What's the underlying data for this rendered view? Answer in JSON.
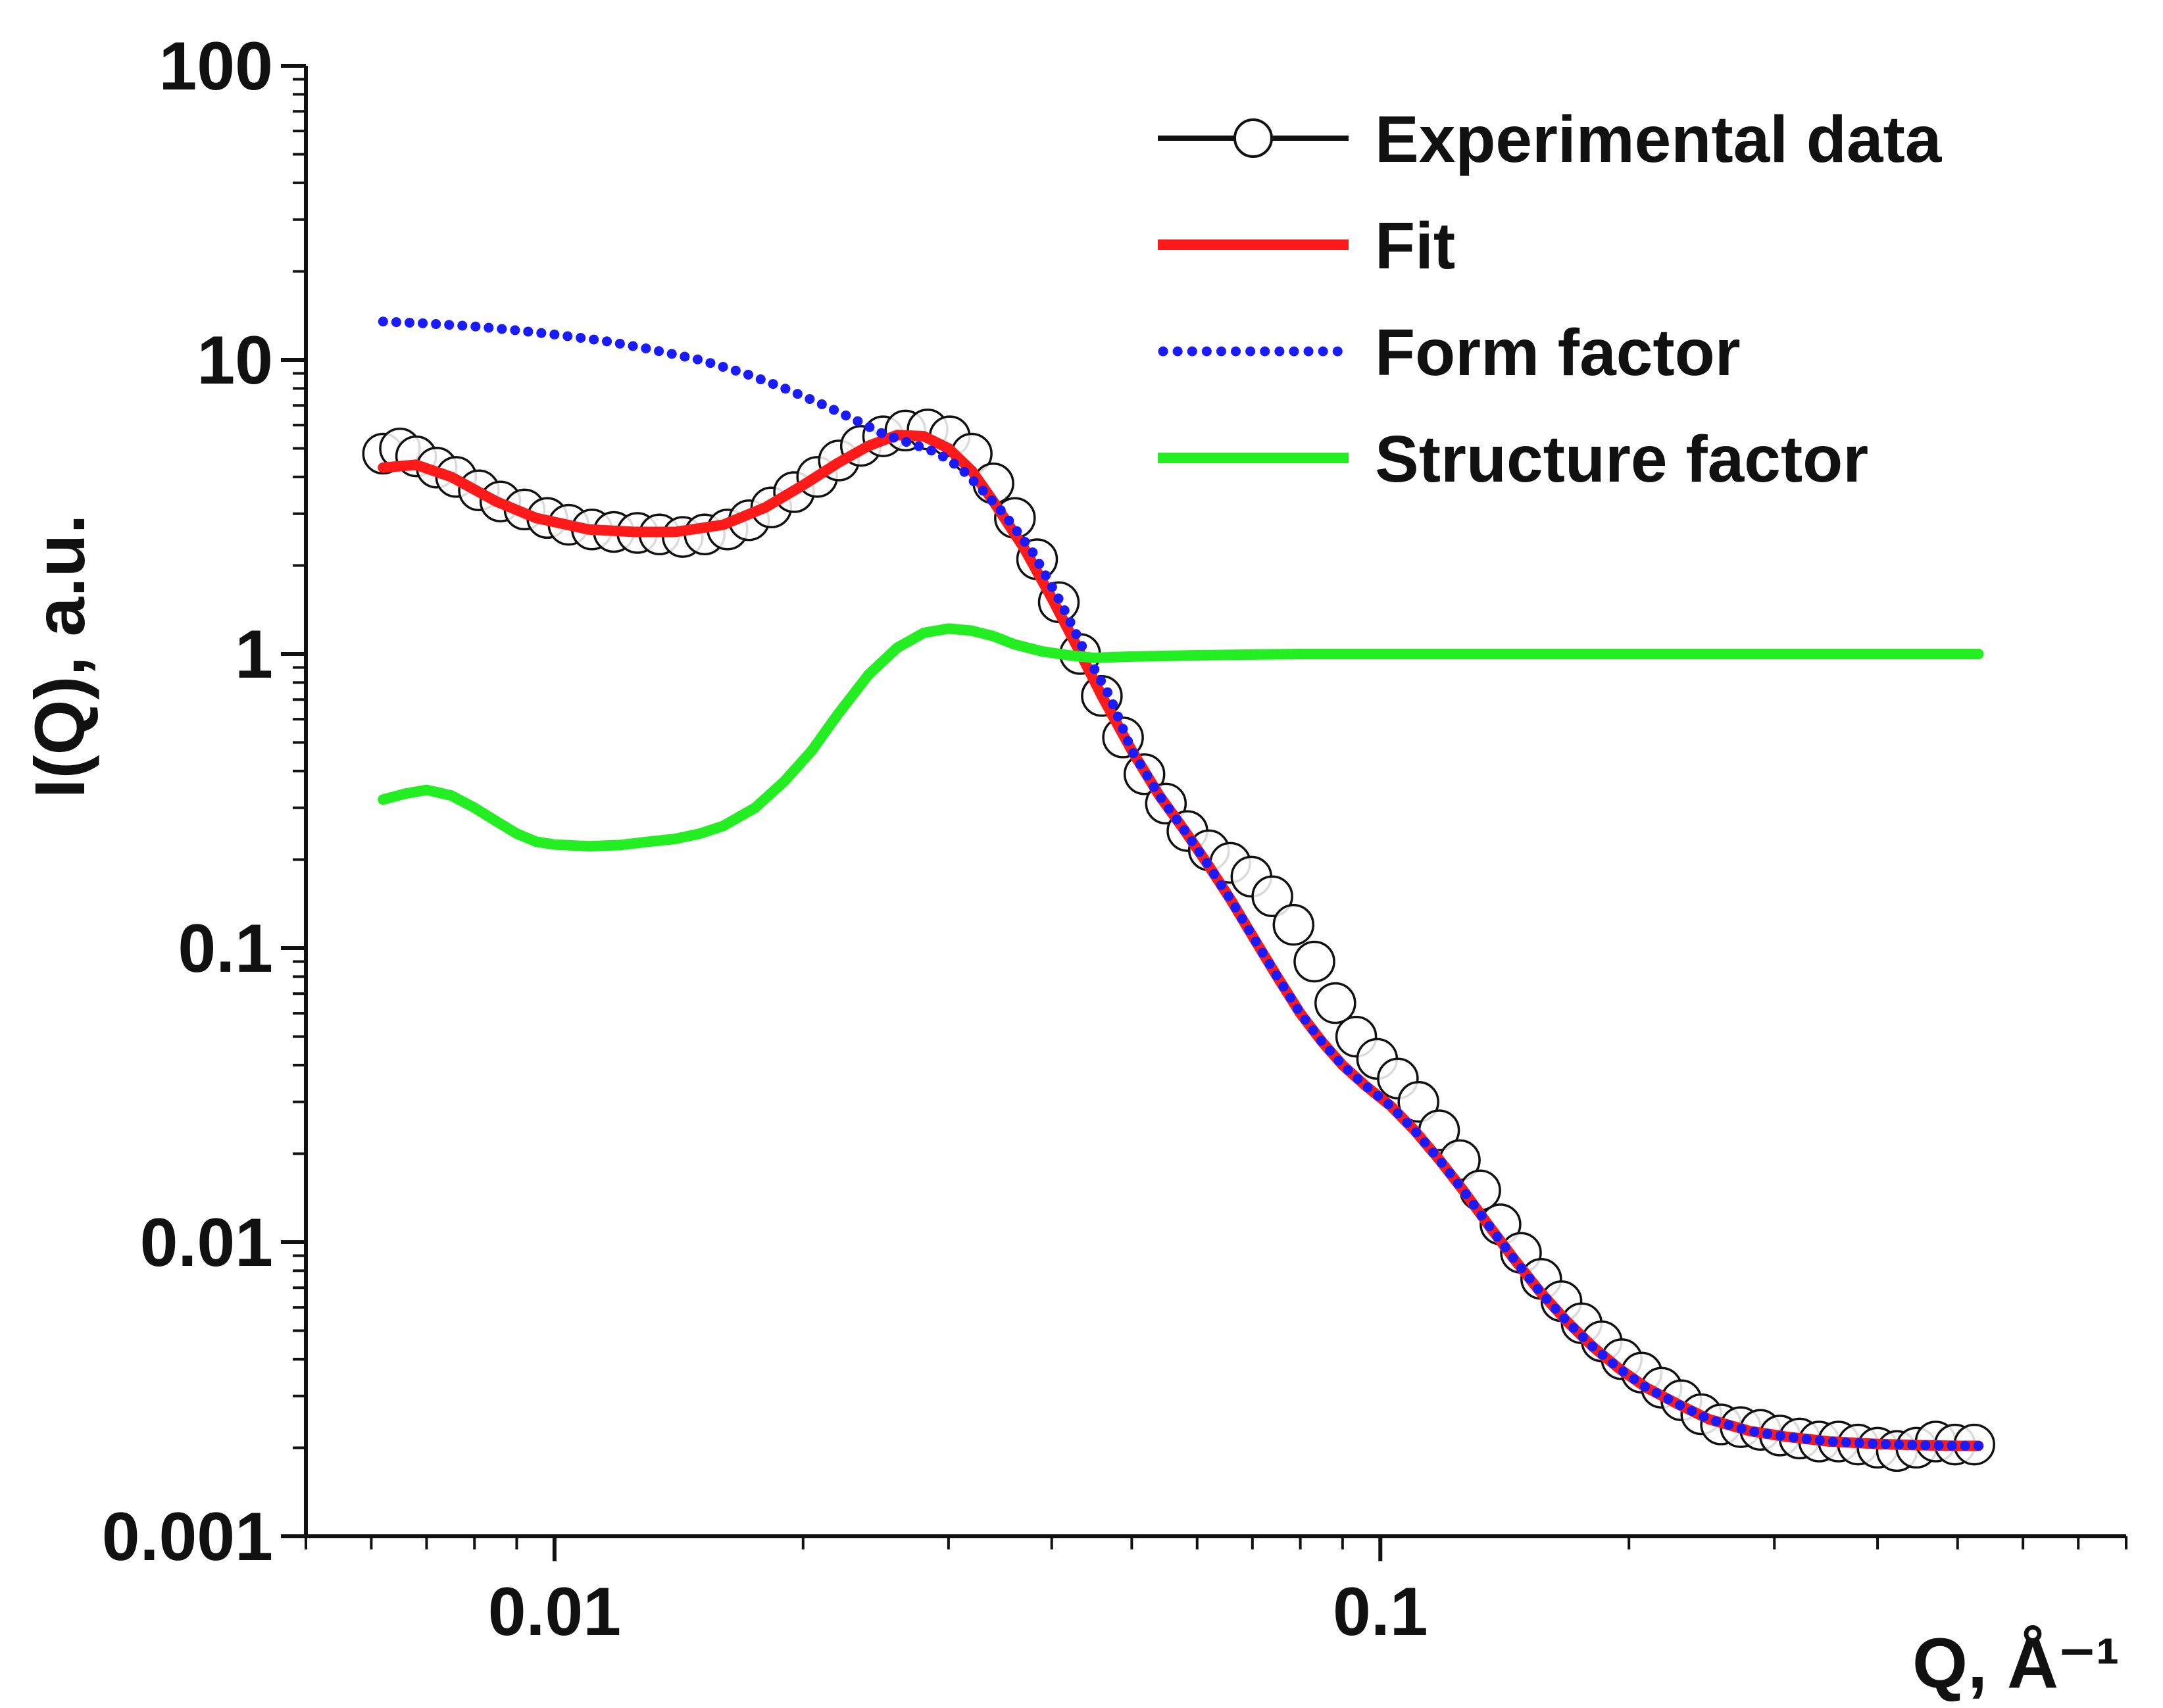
{
  "chart_data": {
    "type": "line",
    "xscale": "log",
    "yscale": "log",
    "xlim": [
      0.005,
      0.8
    ],
    "ylim": [
      0.001,
      100
    ],
    "xlabel": "Q, Å⁻¹",
    "ylabel": "I(Q), a.u.",
    "x_ticks": [
      {
        "value": 0.01,
        "label": "0.01"
      },
      {
        "value": 0.1,
        "label": "0.1"
      }
    ],
    "y_ticks": [
      {
        "value": 0.001,
        "label": "0.001"
      },
      {
        "value": 0.01,
        "label": "0.01"
      },
      {
        "value": 0.1,
        "label": "0.1"
      },
      {
        "value": 1,
        "label": "1"
      },
      {
        "value": 10,
        "label": "10"
      },
      {
        "value": 100,
        "label": "100"
      }
    ],
    "legend_position": "top-right",
    "series": [
      {
        "name": "Experimental data",
        "style": "circles-line",
        "color": "#111111",
        "points": [
          [
            0.0062,
            4.8
          ],
          [
            0.0065,
            5.0
          ],
          [
            0.0068,
            4.7
          ],
          [
            0.0072,
            4.3
          ],
          [
            0.0076,
            4.0
          ],
          [
            0.0081,
            3.6
          ],
          [
            0.0086,
            3.3
          ],
          [
            0.0092,
            3.1
          ],
          [
            0.0098,
            2.9
          ],
          [
            0.0104,
            2.75
          ],
          [
            0.0111,
            2.65
          ],
          [
            0.0118,
            2.6
          ],
          [
            0.0126,
            2.58
          ],
          [
            0.0134,
            2.55
          ],
          [
            0.0143,
            2.5
          ],
          [
            0.0152,
            2.55
          ],
          [
            0.0162,
            2.65
          ],
          [
            0.0172,
            2.85
          ],
          [
            0.0183,
            3.15
          ],
          [
            0.0195,
            3.55
          ],
          [
            0.0208,
            4.0
          ],
          [
            0.0221,
            4.55
          ],
          [
            0.0235,
            5.1
          ],
          [
            0.025,
            5.5
          ],
          [
            0.0266,
            5.75
          ],
          [
            0.0283,
            5.8
          ],
          [
            0.0301,
            5.5
          ],
          [
            0.032,
            4.8
          ],
          [
            0.034,
            3.8
          ],
          [
            0.0361,
            2.9
          ],
          [
            0.0384,
            2.1
          ],
          [
            0.0408,
            1.5
          ],
          [
            0.0433,
            1.0
          ],
          [
            0.046,
            0.72
          ],
          [
            0.0488,
            0.52
          ],
          [
            0.0518,
            0.39
          ],
          [
            0.055,
            0.31
          ],
          [
            0.0584,
            0.25
          ],
          [
            0.062,
            0.215
          ],
          [
            0.0658,
            0.195
          ],
          [
            0.0698,
            0.175
          ],
          [
            0.074,
            0.15
          ],
          [
            0.0785,
            0.12
          ],
          [
            0.0832,
            0.09
          ],
          [
            0.0882,
            0.065
          ],
          [
            0.0935,
            0.05
          ],
          [
            0.0991,
            0.042
          ],
          [
            0.105,
            0.036
          ],
          [
            0.1112,
            0.03
          ],
          [
            0.1178,
            0.024
          ],
          [
            0.1248,
            0.019
          ],
          [
            0.1321,
            0.015
          ],
          [
            0.1398,
            0.0115
          ],
          [
            0.148,
            0.0092
          ],
          [
            0.1566,
            0.0075
          ],
          [
            0.1657,
            0.0063
          ],
          [
            0.1753,
            0.0053
          ],
          [
            0.1854,
            0.0046
          ],
          [
            0.196,
            0.004
          ],
          [
            0.2072,
            0.0036
          ],
          [
            0.219,
            0.0032
          ],
          [
            0.2315,
            0.0029
          ],
          [
            0.2447,
            0.0026
          ],
          [
            0.2585,
            0.0024
          ],
          [
            0.2731,
            0.00235
          ],
          [
            0.2885,
            0.0023
          ],
          [
            0.3047,
            0.0022
          ],
          [
            0.3218,
            0.00215
          ],
          [
            0.3398,
            0.0021
          ],
          [
            0.3588,
            0.0021
          ],
          [
            0.3788,
            0.00205
          ],
          [
            0.4,
            0.002
          ],
          [
            0.4222,
            0.00195
          ],
          [
            0.4457,
            0.002
          ],
          [
            0.4704,
            0.0021
          ],
          [
            0.4964,
            0.00205
          ],
          [
            0.5239,
            0.00205
          ]
        ]
      },
      {
        "name": "Fit",
        "style": "solid",
        "color": "#ff1a1a",
        "points": [
          [
            0.0062,
            4.3
          ],
          [
            0.0068,
            4.4
          ],
          [
            0.0075,
            4.0
          ],
          [
            0.0085,
            3.3
          ],
          [
            0.0095,
            2.9
          ],
          [
            0.011,
            2.65
          ],
          [
            0.0125,
            2.6
          ],
          [
            0.014,
            2.6
          ],
          [
            0.016,
            2.75
          ],
          [
            0.018,
            3.15
          ],
          [
            0.02,
            3.75
          ],
          [
            0.022,
            4.45
          ],
          [
            0.024,
            5.1
          ],
          [
            0.026,
            5.55
          ],
          [
            0.028,
            5.5
          ],
          [
            0.03,
            5.0
          ],
          [
            0.032,
            4.2
          ],
          [
            0.034,
            3.3
          ],
          [
            0.037,
            2.3
          ],
          [
            0.04,
            1.55
          ],
          [
            0.043,
            1.05
          ],
          [
            0.046,
            0.72
          ],
          [
            0.05,
            0.47
          ],
          [
            0.054,
            0.33
          ],
          [
            0.058,
            0.25
          ],
          [
            0.062,
            0.19
          ],
          [
            0.066,
            0.145
          ],
          [
            0.07,
            0.11
          ],
          [
            0.075,
            0.08
          ],
          [
            0.08,
            0.06
          ],
          [
            0.085,
            0.048
          ],
          [
            0.09,
            0.04
          ],
          [
            0.096,
            0.034
          ],
          [
            0.103,
            0.029
          ],
          [
            0.11,
            0.024
          ],
          [
            0.118,
            0.019
          ],
          [
            0.126,
            0.015
          ],
          [
            0.135,
            0.0115
          ],
          [
            0.145,
            0.0088
          ],
          [
            0.156,
            0.0068
          ],
          [
            0.168,
            0.0054
          ],
          [
            0.181,
            0.0044
          ],
          [
            0.195,
            0.0037
          ],
          [
            0.21,
            0.0032
          ],
          [
            0.23,
            0.0028
          ],
          [
            0.25,
            0.0025
          ],
          [
            0.28,
            0.00228
          ],
          [
            0.31,
            0.00218
          ],
          [
            0.35,
            0.0021
          ],
          [
            0.4,
            0.00206
          ],
          [
            0.45,
            0.00204
          ],
          [
            0.5,
            0.00203
          ],
          [
            0.53,
            0.00203
          ]
        ]
      },
      {
        "name": "Form factor",
        "style": "dotted",
        "color": "#1a1aff",
        "points": [
          [
            0.0062,
            13.5
          ],
          [
            0.007,
            13.3
          ],
          [
            0.008,
            13.0
          ],
          [
            0.009,
            12.6
          ],
          [
            0.01,
            12.2
          ],
          [
            0.0115,
            11.6
          ],
          [
            0.013,
            10.9
          ],
          [
            0.015,
            10.0
          ],
          [
            0.017,
            9.0
          ],
          [
            0.019,
            8.0
          ],
          [
            0.021,
            7.1
          ],
          [
            0.023,
            6.3
          ],
          [
            0.025,
            5.6
          ],
          [
            0.027,
            5.2
          ],
          [
            0.029,
            4.85
          ],
          [
            0.031,
            4.3
          ],
          [
            0.033,
            3.6
          ],
          [
            0.035,
            3.0
          ],
          [
            0.038,
            2.2
          ],
          [
            0.041,
            1.5
          ],
          [
            0.044,
            1.0
          ],
          [
            0.047,
            0.72
          ],
          [
            0.05,
            0.47
          ],
          [
            0.054,
            0.33
          ],
          [
            0.058,
            0.25
          ],
          [
            0.062,
            0.19
          ],
          [
            0.066,
            0.145
          ],
          [
            0.07,
            0.11
          ],
          [
            0.075,
            0.08
          ],
          [
            0.08,
            0.06
          ],
          [
            0.085,
            0.048
          ],
          [
            0.09,
            0.04
          ],
          [
            0.096,
            0.034
          ],
          [
            0.103,
            0.029
          ],
          [
            0.11,
            0.024
          ],
          [
            0.118,
            0.019
          ],
          [
            0.126,
            0.015
          ],
          [
            0.135,
            0.0115
          ],
          [
            0.145,
            0.0088
          ],
          [
            0.156,
            0.0068
          ],
          [
            0.168,
            0.0054
          ],
          [
            0.181,
            0.0044
          ],
          [
            0.195,
            0.0037
          ],
          [
            0.21,
            0.0032
          ],
          [
            0.23,
            0.0028
          ],
          [
            0.25,
            0.0025
          ],
          [
            0.28,
            0.00228
          ],
          [
            0.31,
            0.00218
          ],
          [
            0.35,
            0.0021
          ],
          [
            0.4,
            0.00206
          ],
          [
            0.45,
            0.00204
          ],
          [
            0.5,
            0.00203
          ],
          [
            0.53,
            0.00203
          ]
        ]
      },
      {
        "name": "Structure factor",
        "style": "solid",
        "color": "#22ee22",
        "points": [
          [
            0.0062,
            0.32
          ],
          [
            0.0066,
            0.335
          ],
          [
            0.007,
            0.345
          ],
          [
            0.0075,
            0.33
          ],
          [
            0.008,
            0.3
          ],
          [
            0.0085,
            0.27
          ],
          [
            0.009,
            0.245
          ],
          [
            0.0095,
            0.23
          ],
          [
            0.01,
            0.225
          ],
          [
            0.011,
            0.222
          ],
          [
            0.012,
            0.224
          ],
          [
            0.013,
            0.23
          ],
          [
            0.014,
            0.235
          ],
          [
            0.015,
            0.245
          ],
          [
            0.016,
            0.26
          ],
          [
            0.0175,
            0.3
          ],
          [
            0.019,
            0.37
          ],
          [
            0.0205,
            0.47
          ],
          [
            0.022,
            0.62
          ],
          [
            0.024,
            0.85
          ],
          [
            0.026,
            1.05
          ],
          [
            0.028,
            1.18
          ],
          [
            0.03,
            1.22
          ],
          [
            0.032,
            1.2
          ],
          [
            0.034,
            1.15
          ],
          [
            0.036,
            1.08
          ],
          [
            0.039,
            1.02
          ],
          [
            0.042,
            0.99
          ],
          [
            0.045,
            0.97
          ],
          [
            0.05,
            0.98
          ],
          [
            0.06,
            0.99
          ],
          [
            0.08,
            1.0
          ],
          [
            0.1,
            1.0
          ],
          [
            0.2,
            1.0
          ],
          [
            0.4,
            1.0
          ],
          [
            0.53,
            1.0
          ]
        ]
      }
    ]
  }
}
